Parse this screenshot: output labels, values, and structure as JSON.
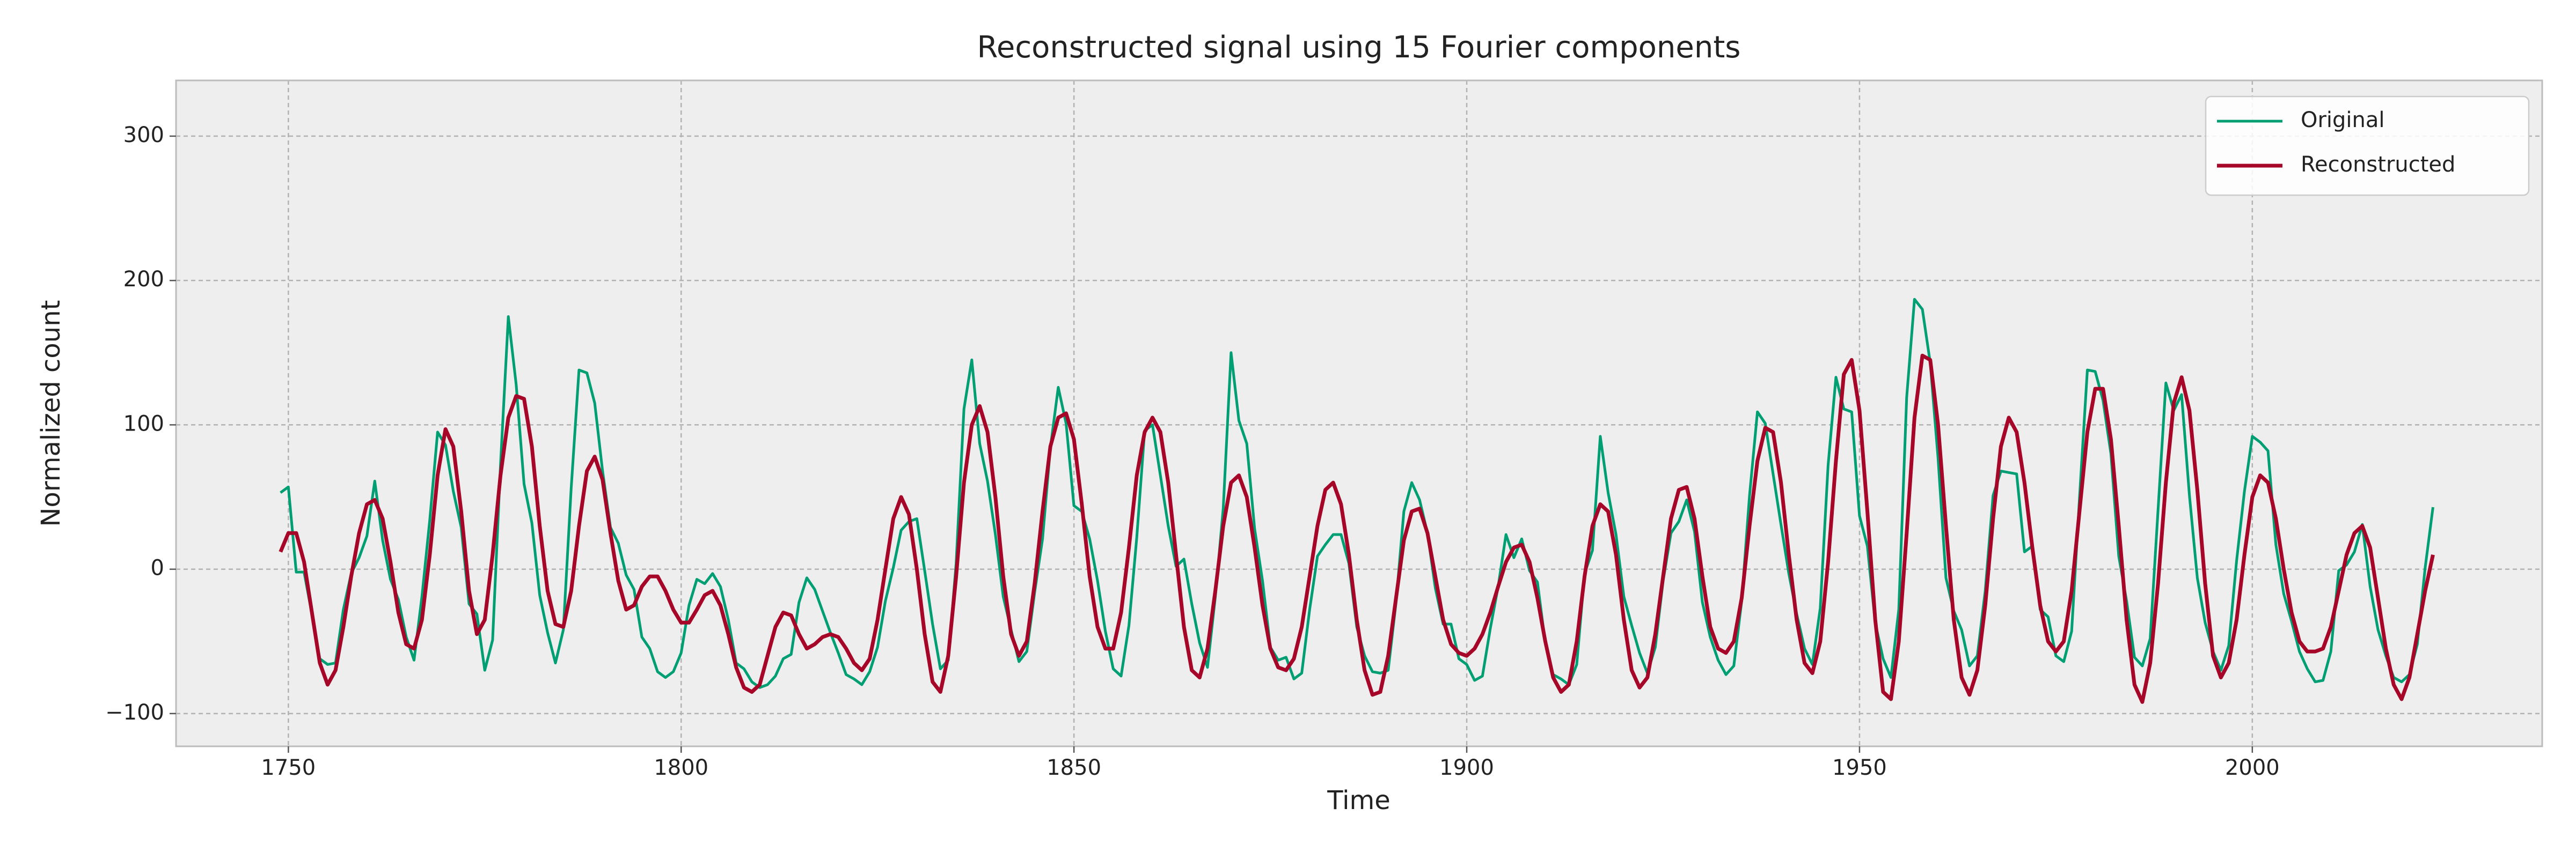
{
  "chart_data": {
    "type": "line",
    "title": "Reconstructed signal using 15 Fourier components",
    "xlabel": "Time",
    "ylabel": "Normalized count",
    "x": [
      1749,
      1750,
      1751,
      1752,
      1753,
      1754,
      1755,
      1756,
      1757,
      1758,
      1759,
      1760,
      1761,
      1762,
      1763,
      1764,
      1765,
      1766,
      1767,
      1768,
      1769,
      1770,
      1771,
      1772,
      1773,
      1774,
      1775,
      1776,
      1777,
      1778,
      1779,
      1780,
      1781,
      1782,
      1783,
      1784,
      1785,
      1786,
      1787,
      1788,
      1789,
      1790,
      1791,
      1792,
      1793,
      1794,
      1795,
      1796,
      1797,
      1798,
      1799,
      1800,
      1801,
      1802,
      1803,
      1804,
      1805,
      1806,
      1807,
      1808,
      1809,
      1810,
      1811,
      1812,
      1813,
      1814,
      1815,
      1816,
      1817,
      1818,
      1819,
      1820,
      1821,
      1822,
      1823,
      1824,
      1825,
      1826,
      1827,
      1828,
      1829,
      1830,
      1831,
      1832,
      1833,
      1834,
      1835,
      1836,
      1837,
      1838,
      1839,
      1840,
      1841,
      1842,
      1843,
      1844,
      1845,
      1846,
      1847,
      1848,
      1849,
      1850,
      1851,
      1852,
      1853,
      1854,
      1855,
      1856,
      1857,
      1858,
      1859,
      1860,
      1861,
      1862,
      1863,
      1864,
      1865,
      1866,
      1867,
      1868,
      1869,
      1870,
      1871,
      1872,
      1873,
      1874,
      1875,
      1876,
      1877,
      1878,
      1879,
      1880,
      1881,
      1882,
      1883,
      1884,
      1885,
      1886,
      1887,
      1888,
      1889,
      1890,
      1891,
      1892,
      1893,
      1894,
      1895,
      1896,
      1897,
      1898,
      1899,
      1900,
      1901,
      1902,
      1903,
      1904,
      1905,
      1906,
      1907,
      1908,
      1909,
      1910,
      1911,
      1912,
      1913,
      1914,
      1915,
      1916,
      1917,
      1918,
      1919,
      1920,
      1921,
      1922,
      1923,
      1924,
      1925,
      1926,
      1927,
      1928,
      1929,
      1930,
      1931,
      1932,
      1933,
      1934,
      1935,
      1936,
      1937,
      1938,
      1939,
      1940,
      1941,
      1942,
      1943,
      1944,
      1945,
      1946,
      1947,
      1948,
      1949,
      1950,
      1951,
      1952,
      1953,
      1954,
      1955,
      1956,
      1957,
      1958,
      1959,
      1960,
      1961,
      1962,
      1963,
      1964,
      1965,
      1966,
      1967,
      1968,
      1969,
      1970,
      1971,
      1972,
      1973,
      1974,
      1975,
      1976,
      1977,
      1978,
      1979,
      1980,
      1981,
      1982,
      1983,
      1984,
      1985,
      1986,
      1987,
      1988,
      1989,
      1990,
      1991,
      1992,
      1993,
      1994,
      1995,
      1996,
      1997,
      1998,
      1999,
      2000,
      2001,
      2002,
      2003,
      2004,
      2005,
      2006,
      2007,
      2008,
      2009,
      2010,
      2011,
      2012,
      2013,
      2014,
      2015,
      2016,
      2017,
      2018,
      2019,
      2020,
      2021,
      2022,
      2023
    ],
    "series": [
      {
        "name": "Original",
        "color": "#009e73",
        "values": [
          53,
          57,
          -2,
          -2,
          -31,
          -62,
          -66,
          -65,
          -28,
          -3,
          8,
          23,
          61,
          20,
          -7,
          -21,
          -47,
          -63,
          -19,
          34,
          95,
          86,
          54,
          29,
          -24,
          -31,
          -70,
          -49,
          72,
          175,
          128,
          59,
          32,
          -18,
          -44,
          -65,
          -42,
          56,
          138,
          136,
          115,
          68,
          29,
          18,
          -4,
          -14,
          -47,
          -55,
          -71,
          -75,
          -71,
          -58,
          -25,
          -7,
          -10,
          -3,
          -12,
          -35,
          -65,
          -69,
          -78,
          -82,
          -80,
          -74,
          -62,
          -59,
          -23,
          -6,
          -14,
          -29,
          -44,
          -58,
          -73,
          -76,
          -80,
          -71,
          -54,
          -22,
          1,
          27,
          33,
          35,
          -1,
          -38,
          -69,
          -63,
          4,
          111,
          145,
          87,
          61,
          24,
          -19,
          -42,
          -64,
          -57,
          -16,
          21,
          84,
          126,
          101,
          44,
          40,
          21,
          -8,
          -43,
          -69,
          -74,
          -39,
          22,
          96,
          100,
          65,
          30,
          2,
          7,
          -24,
          -51,
          -68,
          -19,
          42,
          150,
          103,
          87,
          28,
          -8,
          -54,
          -63,
          -61,
          -76,
          -72,
          -28,
          9,
          17,
          24,
          24,
          4,
          -40,
          -60,
          -71,
          -72,
          -70,
          -23,
          40,
          60,
          48,
          25,
          -13,
          -38,
          -38,
          -62,
          -66,
          -77,
          -74,
          -41,
          -12,
          24,
          8,
          21,
          -1,
          -9,
          -51,
          -73,
          -76,
          -80,
          -66,
          -3,
          13,
          92,
          53,
          24,
          -19,
          -39,
          -58,
          -72,
          -54,
          -8,
          25,
          33,
          48,
          26,
          -23,
          -47,
          -63,
          -73,
          -67,
          -22,
          51,
          109,
          101,
          66,
          31,
          -3,
          -31,
          -55,
          -66,
          -27,
          72,
          133,
          111,
          109,
          37,
          16,
          -37,
          -62,
          -75,
          -28,
          119,
          187,
          180,
          143,
          77,
          -6,
          -29,
          -42,
          -67,
          -60,
          -15,
          51,
          68,
          67,
          66,
          12,
          16,
          -28,
          -33,
          -60,
          -64,
          -43,
          49,
          138,
          137,
          117,
          80,
          9,
          -22,
          -61,
          -67,
          -48,
          41,
          129,
          110,
          121,
          51,
          -6,
          -37,
          -57,
          -70,
          -53,
          6,
          54,
          92,
          88,
          82,
          17,
          -17,
          -36,
          -57,
          -69,
          -78,
          -77,
          -57,
          -1,
          3,
          12,
          31,
          -12,
          -42,
          -60,
          -75,
          -78,
          -73,
          -52,
          1,
          43
        ]
      },
      {
        "name": "Reconstructed",
        "color": "#a60628",
        "values": [
          12,
          25,
          25,
          5,
          -30,
          -65,
          -80,
          -70,
          -40,
          -5,
          25,
          45,
          48,
          35,
          5,
          -30,
          -52,
          -55,
          -35,
          10,
          65,
          97,
          85,
          40,
          -15,
          -45,
          -35,
          10,
          65,
          105,
          120,
          118,
          85,
          30,
          -15,
          -38,
          -40,
          -15,
          30,
          68,
          78,
          62,
          25,
          -8,
          -28,
          -25,
          -12,
          -5,
          -5,
          -15,
          -28,
          -37,
          -37,
          -28,
          -18,
          -15,
          -25,
          -45,
          -68,
          -82,
          -85,
          -80,
          -60,
          -40,
          -30,
          -32,
          -45,
          -55,
          -52,
          -47,
          -45,
          -47,
          -55,
          -65,
          -70,
          -62,
          -35,
          0,
          35,
          50,
          38,
          0,
          -45,
          -78,
          -85,
          -60,
          -5,
          60,
          100,
          113,
          95,
          50,
          -5,
          -45,
          -60,
          -50,
          -10,
          40,
          85,
          105,
          108,
          90,
          45,
          -5,
          -40,
          -55,
          -55,
          -30,
          15,
          65,
          95,
          105,
          95,
          60,
          10,
          -40,
          -70,
          -75,
          -55,
          -15,
          30,
          60,
          65,
          50,
          15,
          -25,
          -55,
          -68,
          -70,
          -62,
          -40,
          -5,
          30,
          55,
          60,
          45,
          10,
          -35,
          -70,
          -87,
          -85,
          -60,
          -20,
          20,
          40,
          42,
          25,
          -5,
          -35,
          -52,
          -58,
          -60,
          -55,
          -45,
          -30,
          -12,
          5,
          15,
          17,
          5,
          -20,
          -50,
          -75,
          -85,
          -80,
          -50,
          -5,
          30,
          45,
          40,
          10,
          -35,
          -70,
          -82,
          -75,
          -45,
          -5,
          35,
          55,
          57,
          35,
          -5,
          -40,
          -55,
          -58,
          -50,
          -20,
          30,
          75,
          98,
          95,
          60,
          10,
          -35,
          -65,
          -72,
          -50,
          5,
          75,
          135,
          145,
          110,
          40,
          -35,
          -85,
          -90,
          -50,
          25,
          105,
          148,
          145,
          100,
          30,
          -35,
          -75,
          -87,
          -70,
          -25,
          35,
          85,
          105,
          95,
          60,
          15,
          -25,
          -50,
          -57,
          -50,
          -15,
          40,
          95,
          125,
          125,
          90,
          30,
          -35,
          -80,
          -92,
          -65,
          -10,
          60,
          115,
          133,
          110,
          55,
          -10,
          -60,
          -75,
          -65,
          -35,
          10,
          50,
          65,
          60,
          35,
          0,
          -30,
          -50,
          -57,
          -57,
          -55,
          -40,
          -15,
          10,
          25,
          30,
          15,
          -20,
          -55,
          -80,
          -90,
          -75,
          -45,
          -15,
          10
        ]
      }
    ],
    "xlim": [
      1735.7,
      2036.9
    ],
    "ylim": [
      -122.7,
      338.6
    ],
    "xticks": [
      1750,
      1800,
      1850,
      1900,
      1950,
      2000
    ],
    "yticks": [
      {
        "value": -100,
        "label": "−100"
      },
      0,
      100,
      200,
      300
    ],
    "grid": true,
    "legend": "upper right"
  }
}
